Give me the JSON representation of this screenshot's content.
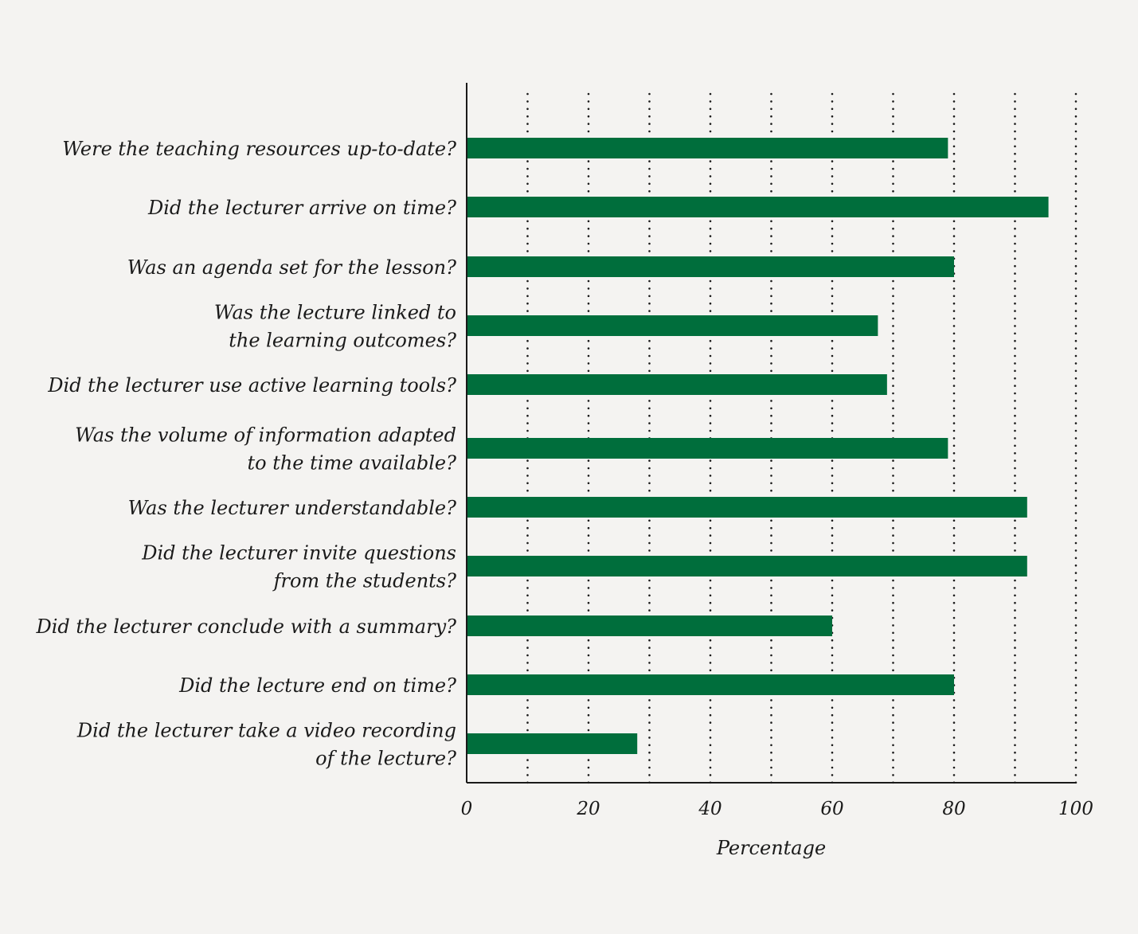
{
  "chart_data": {
    "type": "bar",
    "orientation": "horizontal",
    "title": "",
    "xlabel": "Percentage",
    "ylabel": "",
    "xlim": [
      0,
      100
    ],
    "xticks": [
      0,
      20,
      40,
      60,
      80,
      100
    ],
    "grid": "vertical dotted lines every 10",
    "bar_color": "#006e3c",
    "categories": [
      [
        "Were the teaching resources up-to-date?"
      ],
      [
        "Did the lecturer arrive on time?"
      ],
      [
        "Was an agenda set for the lesson?"
      ],
      [
        "Was the lecture linked to",
        "the learning outcomes?"
      ],
      [
        "Did the lecturer use active learning tools?"
      ],
      [
        "Was the volume of information adapted",
        "to the time available?"
      ],
      [
        "Was the lecturer understandable?"
      ],
      [
        "Did the lecturer invite questions",
        "from the students?"
      ],
      [
        "Did the lecturer conclude with a summary?"
      ],
      [
        "Did the lecture end on time?"
      ],
      [
        "Did the lecturer take a video recording",
        "of the lecture?"
      ]
    ],
    "values": [
      79,
      95.5,
      80,
      67.5,
      69,
      79,
      92,
      92,
      60,
      80,
      28
    ]
  }
}
